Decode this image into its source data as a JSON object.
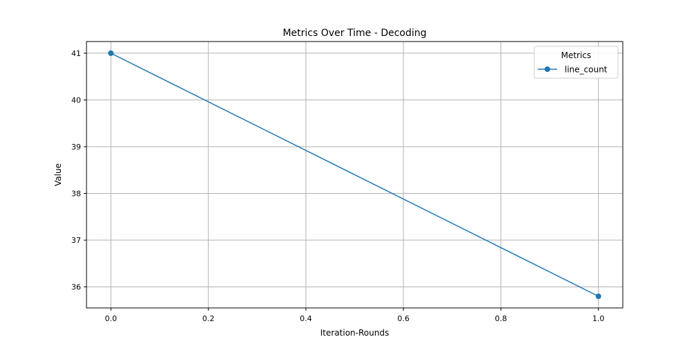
{
  "chart_data": {
    "type": "line",
    "title": "Metrics Over Time - Decoding",
    "xlabel": "Iteration-Rounds",
    "ylabel": "Value",
    "xlim": [
      -0.05,
      1.05
    ],
    "ylim": [
      35.55,
      41.25
    ],
    "xticks": [
      0.0,
      0.2,
      0.4,
      0.6,
      0.8,
      1.0
    ],
    "xtick_labels": [
      "0.0",
      "0.2",
      "0.4",
      "0.6",
      "0.8",
      "1.0"
    ],
    "yticks": [
      36,
      37,
      38,
      39,
      40,
      41
    ],
    "ytick_labels": [
      "36",
      "37",
      "38",
      "39",
      "40",
      "41"
    ],
    "grid": true,
    "legend": {
      "title": "Metrics",
      "placement": "top-right"
    },
    "series": [
      {
        "name": "line_count",
        "color": "#1f77b4",
        "marker": "circle",
        "x": [
          0.0,
          1.0
        ],
        "y": [
          41,
          35.8
        ]
      }
    ]
  }
}
